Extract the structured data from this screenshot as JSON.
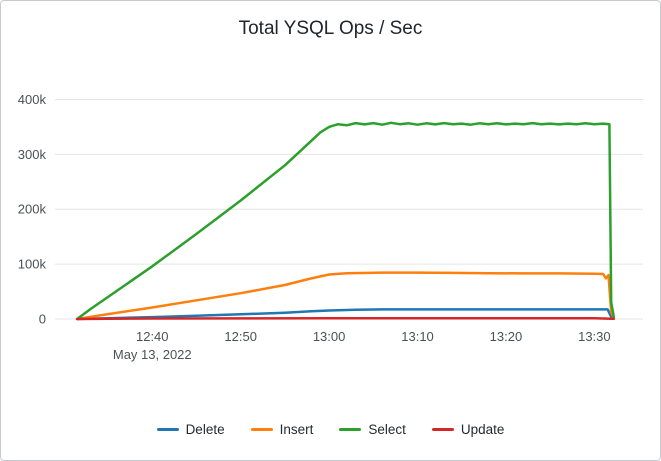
{
  "chart_data": {
    "type": "line",
    "title": "Total YSQL Ops / Sec",
    "xlabel": "",
    "ylabel": "",
    "x_date_label": "May 13, 2022",
    "x_unit": "minutes_since_12:30",
    "xlim_minutes": [
      -1,
      65.5
    ],
    "ylim": [
      0,
      430000
    ],
    "grid": "horizontal",
    "grid_color": "#e5e5e5",
    "axis_text_color": "#4c5157",
    "legend_position": "bottom",
    "y_ticks": [
      {
        "label": "0",
        "value": 0
      },
      {
        "label": "100k",
        "value": 100000
      },
      {
        "label": "200k",
        "value": 200000
      },
      {
        "label": "300k",
        "value": 300000
      },
      {
        "label": "400k",
        "value": 400000
      }
    ],
    "x_ticks": [
      {
        "label": "12:40",
        "min": 10
      },
      {
        "label": "12:50",
        "min": 20
      },
      {
        "label": "13:00",
        "min": 30
      },
      {
        "label": "13:10",
        "min": 40
      },
      {
        "label": "13:20",
        "min": 50
      },
      {
        "label": "13:30",
        "min": 60
      }
    ],
    "series": [
      {
        "name": "Delete",
        "color": "#1F77B4",
        "points": [
          [
            1.5,
            0
          ],
          [
            5,
            1500
          ],
          [
            10,
            3500
          ],
          [
            15,
            6000
          ],
          [
            20,
            8500
          ],
          [
            25,
            11500
          ],
          [
            28,
            14000
          ],
          [
            30,
            15500
          ],
          [
            33,
            17000
          ],
          [
            36,
            17500
          ],
          [
            40,
            17500
          ],
          [
            45,
            17500
          ],
          [
            50,
            17500
          ],
          [
            55,
            17500
          ],
          [
            60,
            17500
          ],
          [
            61.5,
            17500
          ],
          [
            61.9,
            4000
          ],
          [
            62.2,
            1000
          ]
        ]
      },
      {
        "name": "Insert",
        "color": "#FF7F0E",
        "points": [
          [
            1.5,
            0
          ],
          [
            5,
            9000
          ],
          [
            10,
            21000
          ],
          [
            15,
            34000
          ],
          [
            20,
            47000
          ],
          [
            25,
            62000
          ],
          [
            28,
            74000
          ],
          [
            30,
            81000
          ],
          [
            32,
            83500
          ],
          [
            36,
            84500
          ],
          [
            40,
            84500
          ],
          [
            44,
            84000
          ],
          [
            48,
            83500
          ],
          [
            52,
            83000
          ],
          [
            56,
            83000
          ],
          [
            60,
            82500
          ],
          [
            61,
            82000
          ],
          [
            61.3,
            74000
          ],
          [
            61.6,
            80000
          ],
          [
            61.9,
            12000
          ],
          [
            62.2,
            2000
          ]
        ]
      },
      {
        "name": "Select",
        "color": "#2CA02C",
        "points": [
          [
            1.5,
            0
          ],
          [
            3,
            18000
          ],
          [
            10,
            96000
          ],
          [
            15,
            155000
          ],
          [
            20,
            216000
          ],
          [
            25,
            280000
          ],
          [
            27,
            310000
          ],
          [
            29,
            340000
          ],
          [
            30,
            350000
          ],
          [
            31,
            355000
          ],
          [
            32,
            353000
          ],
          [
            33,
            357000
          ],
          [
            34,
            354500
          ],
          [
            35,
            357000
          ],
          [
            36,
            354000
          ],
          [
            37,
            357500
          ],
          [
            38,
            355000
          ],
          [
            39,
            356500
          ],
          [
            40,
            354000
          ],
          [
            41,
            356500
          ],
          [
            42,
            354500
          ],
          [
            43,
            357000
          ],
          [
            44,
            355000
          ],
          [
            45,
            356000
          ],
          [
            46,
            354000
          ],
          [
            47,
            356500
          ],
          [
            48,
            355000
          ],
          [
            49,
            356500
          ],
          [
            50,
            354500
          ],
          [
            51,
            356000
          ],
          [
            52,
            355000
          ],
          [
            53,
            357000
          ],
          [
            54,
            355000
          ],
          [
            55,
            356000
          ],
          [
            56,
            354500
          ],
          [
            57,
            356000
          ],
          [
            58,
            355000
          ],
          [
            59,
            356500
          ],
          [
            60,
            355000
          ],
          [
            61,
            356000
          ],
          [
            61.7,
            355000
          ],
          [
            61.9,
            30000
          ],
          [
            62.2,
            4000
          ]
        ]
      },
      {
        "name": "Update",
        "color": "#D62728",
        "points": [
          [
            1.5,
            0
          ],
          [
            5,
            600
          ],
          [
            10,
            900
          ],
          [
            20,
            1100
          ],
          [
            30,
            1200
          ],
          [
            40,
            1200
          ],
          [
            50,
            1200
          ],
          [
            60,
            1200
          ],
          [
            61.9,
            600
          ],
          [
            62.2,
            300
          ]
        ]
      }
    ]
  }
}
